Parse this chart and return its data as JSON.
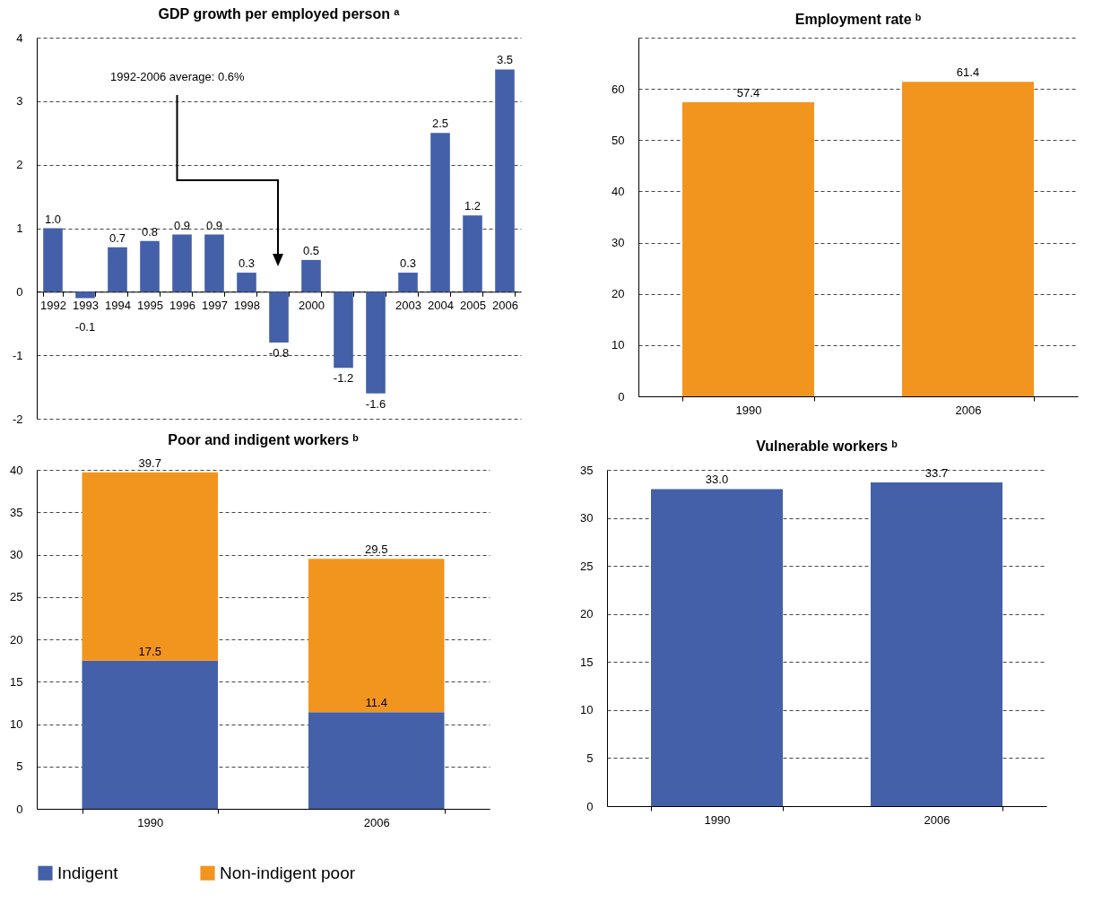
{
  "chart_data": [
    {
      "type": "bar",
      "title": "GDP growth per employed person ᵃ",
      "categories": [
        "1992",
        "1993",
        "1994",
        "1995",
        "1996",
        "1997",
        "1998",
        null,
        "2000",
        null,
        null,
        "2003",
        "2004",
        "2005",
        "2006"
      ],
      "series": [
        {
          "color": "#4360a8",
          "values": [
            1.0,
            -0.1,
            0.7,
            0.8,
            0.9,
            0.9,
            0.3,
            -0.8,
            0.5,
            -1.2,
            -1.6,
            0.3,
            2.5,
            1.2,
            3.5
          ],
          "value_labels": [
            "1.0",
            "-0.1",
            "0.7",
            "0.8",
            "0.9",
            "0.9",
            "0.3",
            "-0.8",
            "0.5",
            "-1.2",
            "-1.6",
            "0.3",
            "2.5",
            "1.2",
            "3.5"
          ]
        }
      ],
      "ylim": [
        -2,
        4
      ],
      "yticks": [
        -2,
        -1,
        0,
        1,
        2,
        3,
        4
      ],
      "grid": "y",
      "annotations": [
        "1992-2006 average: 0.6%"
      ]
    },
    {
      "type": "bar",
      "title": "Employment rate ᵇ",
      "categories": [
        "1990",
        "2006"
      ],
      "series": [
        {
          "color": "#f2951e",
          "values": [
            57.4,
            61.4
          ],
          "value_labels": [
            "57.4",
            "61.4"
          ]
        }
      ],
      "ylim": [
        0,
        70
      ],
      "yticks": [
        0,
        10,
        20,
        30,
        40,
        50,
        60,
        {
          "value": 70,
          "label": null
        }
      ],
      "grid": "y"
    },
    {
      "type": "bar",
      "title": "Poor and indigent workers ᵇ",
      "categories": [
        "1990",
        "2006"
      ],
      "stacked": true,
      "series": [
        {
          "name": "Indigent",
          "color": "#4360a8",
          "values": [
            17.5,
            11.4
          ],
          "value_labels": [
            "17.5",
            "11.4"
          ]
        },
        {
          "name": "Non-indigent poor",
          "color": "#f2951e",
          "values": [
            22.2,
            18.1
          ]
        }
      ],
      "totals": [
        "39.7",
        "29.5"
      ],
      "ylim": [
        0,
        40
      ],
      "yticks": [
        0,
        5,
        10,
        15,
        20,
        25,
        30,
        35,
        40
      ],
      "grid": "y",
      "legend": "bottom"
    },
    {
      "type": "bar",
      "title": "Vulnerable workers ᵇ",
      "categories": [
        "1990",
        "2006"
      ],
      "series": [
        {
          "color": "#4360a8",
          "values": [
            33.0,
            33.7
          ],
          "value_labels": [
            "33.0",
            "33.7"
          ]
        }
      ],
      "ylim": [
        0,
        35
      ],
      "yticks": [
        0,
        5,
        10,
        15,
        20,
        25,
        30,
        35
      ],
      "grid": "y"
    }
  ]
}
